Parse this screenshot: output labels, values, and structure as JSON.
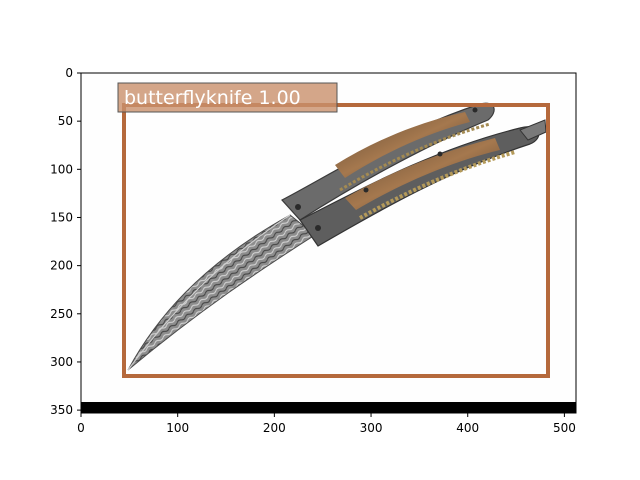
{
  "image": {
    "subject": "butterfly knife with damascus blade",
    "background_color": "#ffffff",
    "bottom_band_color": "#000000"
  },
  "detection": {
    "label": "butterflyknife 1.00",
    "box_color": "#b5693c",
    "label_bg_color": "#c9906b"
  },
  "axes": {
    "x_ticks": [
      0,
      100,
      200,
      300,
      400,
      500
    ],
    "y_ticks": [
      0,
      50,
      100,
      150,
      200,
      250,
      300,
      350
    ],
    "xlim": [
      0,
      512
    ],
    "ylim": [
      353,
      0
    ]
  }
}
